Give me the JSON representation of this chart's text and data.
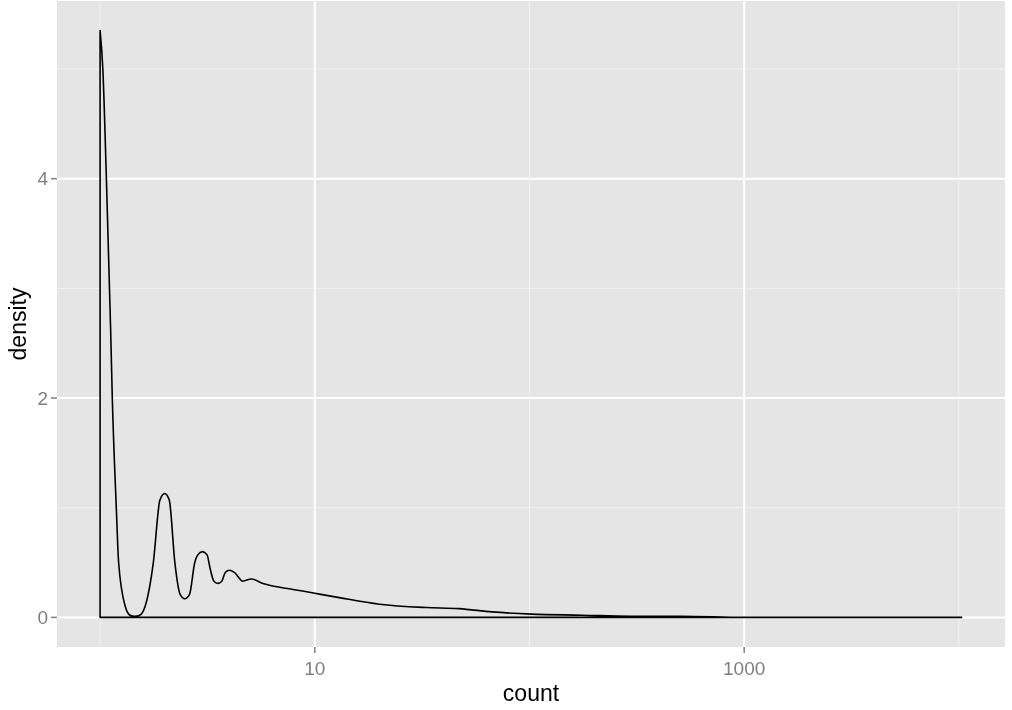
{
  "chart_data": {
    "type": "area",
    "xlabel": "count",
    "ylabel": "density",
    "log": "x",
    "grid": true,
    "xlim": [
      0.63,
      16400
    ],
    "xticks": [
      10,
      1000
    ],
    "ylim": [
      -0.27,
      5.62
    ],
    "yticks": [
      0,
      2,
      4
    ],
    "color": "#000000",
    "x": [
      1,
      1.03,
      1.07,
      1.12,
      1.14,
      1.19,
      1.22,
      1.31,
      1.38,
      1.45,
      1.53,
      1.62,
      1.77,
      1.9,
      2,
      2.1,
      2.23,
      2.36,
      2.48,
      2.61,
      2.76,
      2.85,
      3,
      3.15,
      3.26,
      3.39,
      3.54,
      3.69,
      3.83,
      4,
      4.22,
      4.62,
      5.06,
      5.73,
      7.09,
      8.78,
      10,
      13,
      20,
      33,
      47,
      67,
      102,
      175,
      298,
      509,
      1000,
      3000,
      10300
    ],
    "values": [
      5.35,
      5.0,
      4.0,
      2.62,
      2.0,
      1.0,
      0.5,
      0.1,
      0.02,
      0.01,
      0.02,
      0.1,
      0.5,
      1.07,
      1.13,
      1.07,
      0.5,
      0.21,
      0.17,
      0.21,
      0.5,
      0.57,
      0.6,
      0.57,
      0.44,
      0.33,
      0.31,
      0.33,
      0.41,
      0.43,
      0.41,
      0.33,
      0.35,
      0.31,
      0.27,
      0.24,
      0.22,
      0.18,
      0.12,
      0.09,
      0.08,
      0.05,
      0.03,
      0.02,
      0.01,
      0.01,
      0,
      0,
      0
    ]
  }
}
